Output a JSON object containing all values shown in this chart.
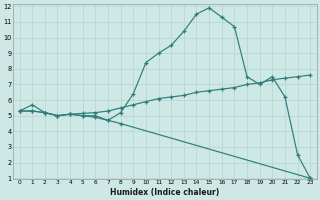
{
  "xlabel": "Humidex (Indice chaleur)",
  "xlim": [
    -0.5,
    23.5
  ],
  "ylim": [
    1,
    12
  ],
  "xticks": [
    0,
    1,
    2,
    3,
    4,
    5,
    6,
    7,
    8,
    9,
    10,
    11,
    12,
    13,
    14,
    15,
    16,
    17,
    18,
    19,
    20,
    21,
    22,
    23
  ],
  "yticks": [
    1,
    2,
    3,
    4,
    5,
    6,
    7,
    8,
    9,
    10,
    11,
    12
  ],
  "bg_color": "#cde8e5",
  "grid_color": "#b8d8d5",
  "line_color": "#2e7d7a",
  "line1_x": [
    0,
    1,
    2,
    3,
    4,
    5,
    6,
    7,
    8,
    9,
    10,
    11,
    12,
    13,
    14,
    15,
    16,
    17,
    18,
    19,
    20,
    21,
    22,
    23
  ],
  "line1_y": [
    5.3,
    5.7,
    5.2,
    5.0,
    5.1,
    5.0,
    5.0,
    4.7,
    5.2,
    6.4,
    8.4,
    9.0,
    9.5,
    10.4,
    11.5,
    11.9,
    11.3,
    10.7,
    7.5,
    7.0,
    7.5,
    6.2,
    2.5,
    1.0
  ],
  "line2_x": [
    0,
    1,
    2,
    3,
    4,
    5,
    6,
    7,
    8,
    9,
    10,
    11,
    12,
    13,
    14,
    15,
    16,
    17,
    18,
    19,
    20,
    21,
    22,
    23
  ],
  "line2_y": [
    5.3,
    5.3,
    5.2,
    5.0,
    5.1,
    5.15,
    5.2,
    5.3,
    5.5,
    5.7,
    5.9,
    6.1,
    6.2,
    6.3,
    6.5,
    6.6,
    6.7,
    6.8,
    7.0,
    7.1,
    7.3,
    7.4,
    7.5,
    7.6
  ],
  "line3_x": [
    0,
    1,
    2,
    3,
    4,
    5,
    6,
    7,
    8,
    23
  ],
  "line3_y": [
    5.3,
    5.3,
    5.2,
    5.0,
    5.1,
    5.0,
    4.9,
    4.7,
    4.5,
    1.0
  ]
}
